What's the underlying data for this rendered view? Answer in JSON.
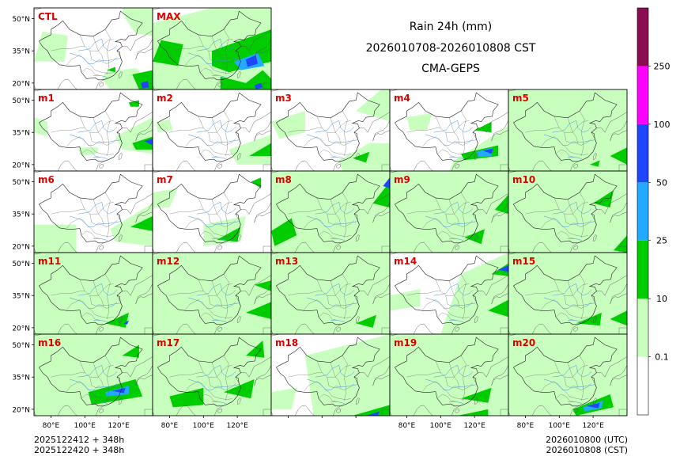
{
  "title": {
    "line1": "Rain 24h (mm)",
    "line2": "2026010708-2026010808 CST",
    "line3": "CMA-GEPS"
  },
  "footer": {
    "left_line1": "2025122412 + 348h",
    "left_line2": "2025122420 + 348h",
    "right_line1": "2026010800 (UTC)",
    "right_line2": "2026010808 (CST)"
  },
  "chart_data": {
    "type": "map",
    "layout": "ensemble panel grid (5 rows x 5 columns, top row has 2 panels)",
    "variable": "24h accumulated precipitation",
    "units": "mm",
    "panels": [
      "CTL",
      "MAX",
      "m1",
      "m2",
      "m3",
      "m4",
      "m5",
      "m6",
      "m7",
      "m8",
      "m9",
      "m10",
      "m11",
      "m12",
      "m13",
      "m14",
      "m15",
      "m16",
      "m17",
      "m18",
      "m19",
      "m20"
    ],
    "lat_ticks": [
      "50°N",
      "35°N",
      "20°N"
    ],
    "lon_ticks": [
      "80°E",
      "100°E",
      "120°E"
    ],
    "colorbar": {
      "levels": [
        0.1,
        10,
        25,
        50,
        100,
        250
      ],
      "labels": [
        "0.1",
        "10",
        "25",
        "50",
        "100",
        "250"
      ],
      "colors": [
        "#ffffff",
        "#c8ffbe",
        "#00cd00",
        "#22aaff",
        "#1e46ff",
        "#ff00ff",
        "#8b0c50"
      ]
    },
    "colors": {
      "light_green": "#c8ffbe",
      "green": "#00cd00",
      "sky_blue": "#22aaff",
      "blue": "#1e46ff",
      "magenta": "#ff00ff",
      "maroon": "#8b0c50",
      "panel_label": "#dd0000",
      "river": "#4a90e2",
      "border": "#222222"
    }
  }
}
